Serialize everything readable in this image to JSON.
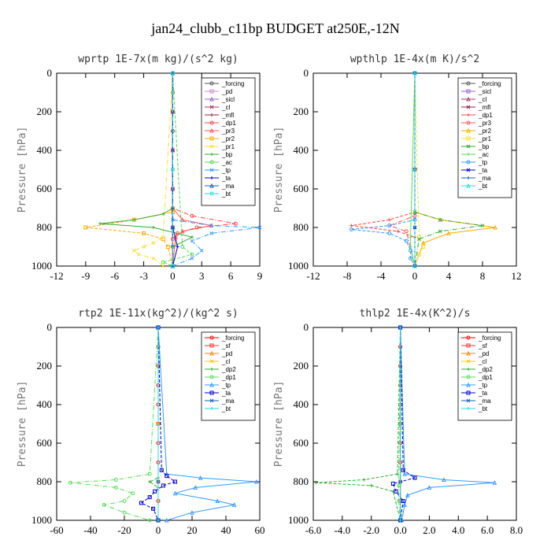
{
  "figure_title": "jan24_clubb_c11bp  BUDGET at250E,-12N",
  "chart_data": [
    {
      "type": "line",
      "title": "wprtp  1E-7x(m kg)/(s^2 kg)",
      "ylabel": "Pressure [hPa]",
      "xlim": [
        -12,
        9
      ],
      "ylim": [
        1000,
        0
      ],
      "xticks": [
        "-12",
        "-9",
        "-6",
        "-3",
        "0",
        "3",
        "6",
        "9"
      ],
      "yticks": [
        "0",
        "200",
        "400",
        "600",
        "800",
        "1000"
      ],
      "legend": "top-right",
      "series": [
        {
          "name": "_forcing",
          "color": "#555555",
          "y": [
            0,
            100,
            200,
            300,
            400,
            500,
            600,
            700,
            800,
            900,
            1000
          ],
          "x": [
            0,
            0,
            0,
            0,
            0,
            0,
            0,
            0,
            0,
            0,
            0
          ]
        },
        {
          "name": "_pd",
          "color": "#cc88cc",
          "y": [
            0,
            200,
            400,
            600,
            800,
            1000
          ],
          "x": [
            0,
            0,
            0,
            0,
            0,
            0
          ]
        },
        {
          "name": "_sicl",
          "color": "#9966cc",
          "y": [
            0,
            200,
            400,
            600,
            800,
            1000
          ],
          "x": [
            0,
            0,
            0,
            0,
            0,
            0
          ]
        },
        {
          "name": "_cl",
          "color": "#aa3366",
          "y": [
            0,
            200,
            400,
            600,
            800,
            1000
          ],
          "x": [
            0,
            0,
            0,
            0,
            0,
            0
          ]
        },
        {
          "name": "_mfl",
          "color": "#882255",
          "y": [
            0,
            200,
            400,
            600,
            800,
            1000
          ],
          "x": [
            0,
            0,
            0,
            0,
            0,
            0
          ]
        },
        {
          "name": "_dp1",
          "color": "#ff4444",
          "y": [
            0,
            700,
            740,
            780,
            800,
            830,
            860,
            900,
            1000
          ],
          "x": [
            0,
            0,
            2,
            6.5,
            2.5,
            0.5,
            0,
            0,
            0
          ]
        },
        {
          "name": "_pr3",
          "color": "#ff5555",
          "y": [
            0,
            700,
            760,
            790,
            820,
            850,
            1000
          ],
          "x": [
            0,
            0,
            1,
            4,
            1,
            0.3,
            0
          ]
        },
        {
          "name": "_pr2",
          "color": "#ffaa00",
          "y": [
            0,
            720,
            760,
            800,
            830,
            860,
            900,
            1000
          ],
          "x": [
            0,
            0,
            -4,
            -9,
            -3,
            -1,
            -0.5,
            0
          ]
        },
        {
          "name": "_pr1",
          "color": "#ffdd33",
          "y": [
            0,
            850,
            880,
            900,
            920,
            940,
            960,
            1000
          ],
          "x": [
            0,
            -1,
            -2,
            -3,
            -4,
            -3.5,
            -2,
            -1
          ]
        },
        {
          "name": "_bp",
          "color": "#33aa33",
          "y": [
            0,
            700,
            730,
            760,
            780,
            800,
            850,
            900,
            1000
          ],
          "x": [
            0,
            0,
            -1,
            -4,
            -7.5,
            -2,
            2,
            0,
            0
          ]
        },
        {
          "name": "_ac",
          "color": "#55dd55",
          "y": [
            0,
            900,
            940,
            980,
            1000
          ],
          "x": [
            0,
            1,
            2,
            -1,
            0
          ]
        },
        {
          "name": "_tp",
          "color": "#3399ff",
          "y": [
            0,
            760,
            790,
            800,
            830,
            870,
            920,
            960,
            1000
          ],
          "x": [
            0,
            0,
            4,
            9,
            4,
            2,
            3,
            2,
            0
          ]
        },
        {
          "name": "_ta",
          "color": "#0000cc",
          "y": [
            0,
            800,
            900,
            1000
          ],
          "x": [
            0,
            0,
            0.5,
            0
          ]
        },
        {
          "name": "_ma",
          "color": "#1166bb",
          "y": [
            0,
            800,
            1000
          ],
          "x": [
            0,
            0,
            0
          ]
        },
        {
          "name": "_bt",
          "color": "#22dddd",
          "y": [
            0,
            500,
            1000
          ],
          "x": [
            0,
            0,
            0
          ]
        }
      ]
    },
    {
      "type": "line",
      "title": "wpthlp  1E-4x(m K)/s^2",
      "ylabel": "Pressure [hPa]",
      "xlim": [
        -12,
        12
      ],
      "ylim": [
        1000,
        0
      ],
      "xticks": [
        "-12",
        "-8",
        "-4",
        "0",
        "4",
        "8",
        "12"
      ],
      "yticks": [
        "0",
        "200",
        "400",
        "600",
        "800",
        "1000"
      ],
      "legend": "top-right",
      "series": [
        {
          "name": "_forcing",
          "color": "#555555",
          "y": [
            0,
            500,
            1000
          ],
          "x": [
            0,
            0,
            0
          ]
        },
        {
          "name": "_sicl",
          "color": "#9966cc",
          "y": [
            0,
            500,
            1000
          ],
          "x": [
            0,
            0,
            0
          ]
        },
        {
          "name": "_cl",
          "color": "#aa3366",
          "y": [
            0,
            500,
            1000
          ],
          "x": [
            0,
            0,
            0
          ]
        },
        {
          "name": "_mfl",
          "color": "#882255",
          "y": [
            0,
            500,
            1000
          ],
          "x": [
            0,
            0,
            0
          ]
        },
        {
          "name": "_dp1",
          "color": "#ff4444",
          "y": [
            0,
            720,
            760,
            790,
            820,
            850,
            1000
          ],
          "x": [
            0,
            0,
            -3,
            -7.5,
            -2,
            0,
            0
          ]
        },
        {
          "name": "_pr3",
          "color": "#ff5555",
          "y": [
            0,
            740,
            790,
            820,
            1000
          ],
          "x": [
            0,
            0,
            -3,
            -1,
            0
          ]
        },
        {
          "name": "_pr2",
          "color": "#ffaa00",
          "y": [
            0,
            720,
            760,
            800,
            830,
            880,
            1000
          ],
          "x": [
            0,
            0,
            3,
            9.5,
            4,
            1,
            0
          ]
        },
        {
          "name": "_pr1",
          "color": "#ffdd33",
          "y": [
            0,
            850,
            900,
            940,
            1000
          ],
          "x": [
            0,
            0.5,
            1,
            0.5,
            0
          ]
        },
        {
          "name": "_bp",
          "color": "#33aa33",
          "y": [
            0,
            720,
            760,
            790,
            820,
            860,
            1000
          ],
          "x": [
            0,
            0,
            3,
            8,
            3,
            0.5,
            0
          ]
        },
        {
          "name": "_ac",
          "color": "#55dd55",
          "y": [
            0,
            850,
            900,
            1000
          ],
          "x": [
            0,
            -0.5,
            -0.5,
            0
          ]
        },
        {
          "name": "_tp",
          "color": "#3399ff",
          "y": [
            0,
            760,
            790,
            810,
            830,
            870,
            920,
            960,
            1000
          ],
          "x": [
            0,
            0,
            -3,
            -7.5,
            -3,
            -1,
            -0.5,
            -0.5,
            0
          ]
        },
        {
          "name": "_ta",
          "color": "#0000cc",
          "y": [
            0,
            800,
            1000
          ],
          "x": [
            0,
            0,
            0
          ]
        },
        {
          "name": "_ma",
          "color": "#1166bb",
          "y": [
            0,
            800,
            1000
          ],
          "x": [
            0,
            0,
            0
          ]
        },
        {
          "name": "_bt",
          "color": "#22dddd",
          "y": [
            0,
            500,
            1000
          ],
          "x": [
            0,
            0,
            0
          ]
        }
      ]
    },
    {
      "type": "line",
      "title": "rtp2  1E-11x(kg^2)/(kg^2 s)",
      "ylabel": "Pressure [hPa]",
      "xlim": [
        -60,
        60
      ],
      "ylim": [
        1000,
        0
      ],
      "xticks": [
        "-60",
        "-40",
        "-20",
        "0",
        "20",
        "40",
        "60"
      ],
      "yticks": [
        "0",
        "200",
        "400",
        "600",
        "800",
        "1000"
      ],
      "legend": "top-right",
      "series": [
        {
          "name": "_forcing",
          "color": "#ff0000",
          "y": [
            0,
            100,
            200,
            300,
            400,
            500,
            600,
            700,
            800,
            900,
            1000
          ],
          "x": [
            0,
            0,
            0,
            0,
            0,
            0,
            0,
            0,
            0,
            0,
            0
          ]
        },
        {
          "name": "_sf",
          "color": "#ee3333",
          "y": [
            0,
            500,
            1000
          ],
          "x": [
            0,
            0,
            0
          ]
        },
        {
          "name": "_pd",
          "color": "#ff8800",
          "y": [
            0,
            500,
            1000
          ],
          "x": [
            0,
            0,
            0
          ]
        },
        {
          "name": "_cl",
          "color": "#ffcc00",
          "y": [
            0,
            500,
            1000
          ],
          "x": [
            0,
            0,
            0
          ]
        },
        {
          "name": "_dp2",
          "color": "#33aa33",
          "y": [
            0,
            780,
            800,
            830,
            1000
          ],
          "x": [
            0,
            0,
            -5,
            0,
            0
          ]
        },
        {
          "name": "_dp1",
          "color": "#55dd55",
          "y": [
            0,
            760,
            790,
            805,
            830,
            860,
            900,
            920,
            960,
            1000
          ],
          "x": [
            0,
            -5,
            -25,
            -52,
            -25,
            -15,
            -20,
            -32,
            -20,
            -5
          ]
        },
        {
          "name": "_tp",
          "color": "#3399ff",
          "y": [
            0,
            760,
            780,
            800,
            830,
            860,
            900,
            920,
            960,
            1000
          ],
          "x": [
            0,
            5,
            25,
            58,
            22,
            10,
            35,
            45,
            20,
            5
          ]
        },
        {
          "name": "_ta",
          "color": "#0000cc",
          "y": [
            0,
            740,
            770,
            800,
            820,
            850,
            880,
            910,
            940,
            1000
          ],
          "x": [
            0,
            2,
            5,
            10,
            3,
            -2,
            -5,
            -10,
            -3,
            0
          ]
        },
        {
          "name": "_ma",
          "color": "#1166bb",
          "y": [
            0,
            800,
            1000
          ],
          "x": [
            0,
            0,
            0
          ]
        },
        {
          "name": "_bt",
          "color": "#22dddd",
          "y": [
            0,
            500,
            1000
          ],
          "x": [
            0,
            0,
            0
          ]
        }
      ]
    },
    {
      "type": "line",
      "title": "thlp2  1E-4x(K^2)/s",
      "ylabel": "Pressure [hPa]",
      "xlim": [
        -6,
        8
      ],
      "ylim": [
        1000,
        0
      ],
      "xticks": [
        "-6.0",
        "-4.0",
        "-2.0",
        "0.0",
        "2.0",
        "4.0",
        "6.0",
        "8.0"
      ],
      "yticks": [
        "0",
        "200",
        "400",
        "600",
        "800",
        "1000"
      ],
      "legend": "top-right",
      "series": [
        {
          "name": "_forcing",
          "color": "#ff0000",
          "y": [
            0,
            100,
            200,
            300,
            400,
            500,
            600,
            700,
            800,
            900,
            1000
          ],
          "x": [
            0,
            0,
            0,
            0,
            0,
            0,
            0,
            0,
            0,
            0,
            0
          ]
        },
        {
          "name": "_sf",
          "color": "#ee3333",
          "y": [
            0,
            500,
            1000
          ],
          "x": [
            0,
            0,
            0
          ]
        },
        {
          "name": "_pd",
          "color": "#ff8800",
          "y": [
            0,
            500,
            1000
          ],
          "x": [
            0,
            0,
            0
          ]
        },
        {
          "name": "_cl",
          "color": "#ffcc00",
          "y": [
            0,
            500,
            1000
          ],
          "x": [
            0,
            0,
            0
          ]
        },
        {
          "name": "_dp2",
          "color": "#33aa33",
          "y": [
            0,
            760,
            790,
            805,
            820,
            850,
            1000
          ],
          "x": [
            0,
            -0.2,
            -2.5,
            -5.8,
            -2,
            -0.5,
            0
          ]
        },
        {
          "name": "_dp1",
          "color": "#55dd55",
          "y": [
            0,
            820,
            900,
            1000
          ],
          "x": [
            0,
            -0.1,
            -0.1,
            0
          ]
        },
        {
          "name": "_tp",
          "color": "#3399ff",
          "y": [
            0,
            760,
            790,
            805,
            830,
            870,
            920,
            1000
          ],
          "x": [
            0,
            0.3,
            3,
            6.5,
            2,
            0.5,
            0.3,
            0.1
          ]
        },
        {
          "name": "_ta",
          "color": "#0000cc",
          "y": [
            0,
            740,
            780,
            810,
            850,
            900,
            1000
          ],
          "x": [
            0,
            0.2,
            1,
            -0.5,
            -0.3,
            0.2,
            0
          ]
        },
        {
          "name": "_ma",
          "color": "#1166bb",
          "y": [
            0,
            800,
            1000
          ],
          "x": [
            0,
            0,
            0
          ]
        },
        {
          "name": "_bt",
          "color": "#22dddd",
          "y": [
            0,
            500,
            1000
          ],
          "x": [
            0,
            0,
            0
          ]
        }
      ]
    }
  ]
}
